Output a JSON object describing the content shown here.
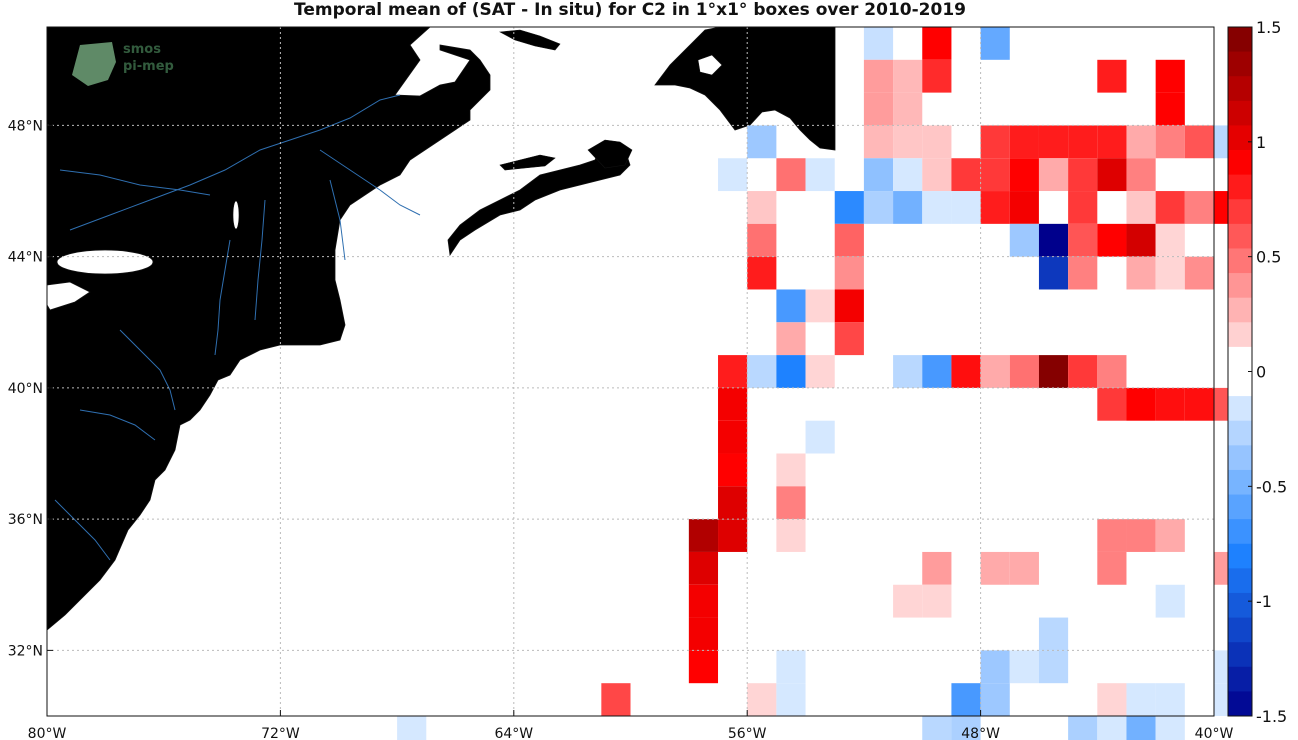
{
  "title": "Temporal mean of (SAT - In situ) for C2 in 1°x1° boxes over 2010-2019",
  "logo": {
    "line1": "smos",
    "line2": "pi-mep"
  },
  "lon_ticks": [
    {
      "value": -80,
      "label": "80°W"
    },
    {
      "value": -72,
      "label": "72°W"
    },
    {
      "value": -64,
      "label": "64°W"
    },
    {
      "value": -56,
      "label": "56°W"
    },
    {
      "value": -48,
      "label": "48°W"
    },
    {
      "value": -40,
      "label": "40°W"
    }
  ],
  "lat_ticks": [
    {
      "value": 32,
      "label": "32°N"
    },
    {
      "value": 36,
      "label": "36°N"
    },
    {
      "value": 40,
      "label": "40°N"
    },
    {
      "value": 44,
      "label": "44°N"
    },
    {
      "value": 48,
      "label": "48°N"
    }
  ],
  "colorbar": {
    "min": -1.5,
    "max": 1.5,
    "steps": 28,
    "ticks": [
      {
        "value": 1.5,
        "label": "1.5"
      },
      {
        "value": 1,
        "label": "1"
      },
      {
        "value": 0.5,
        "label": "0.5"
      },
      {
        "value": 0,
        "label": "0"
      },
      {
        "value": -0.5,
        "label": "-0.5"
      },
      {
        "value": -1,
        "label": "-1"
      },
      {
        "value": -1.5,
        "label": "-1.5"
      }
    ]
  },
  "colors": {
    "land": "#808080",
    "coast": "#111111",
    "river": "#2f6fb0",
    "grid": "#bbbbbb",
    "neg": "#00008c",
    "pos": "#7a0000"
  },
  "chart_data": {
    "type": "heatmap",
    "lon_range": [
      -80,
      -40
    ],
    "lat_range": [
      30,
      51
    ],
    "cell_size_deg": 1,
    "cells": [
      {
        "lon": -51.5,
        "lat": 50.5,
        "value": -0.2
      },
      {
        "lon": -49.5,
        "lat": 50.5,
        "value": 0.9
      },
      {
        "lon": -47.5,
        "lat": 50.5,
        "value": -0.55
      },
      {
        "lon": -51.5,
        "lat": 49.5,
        "value": 0.35
      },
      {
        "lon": -50.5,
        "lat": 49.5,
        "value": 0.25
      },
      {
        "lon": -49.5,
        "lat": 49.5,
        "value": 0.75
      },
      {
        "lon": -43.5,
        "lat": 49.5,
        "value": 0.8
      },
      {
        "lon": -41.5,
        "lat": 49.5,
        "value": 0.9
      },
      {
        "lon": -51.5,
        "lat": 48.5,
        "value": 0.35
      },
      {
        "lon": -50.5,
        "lat": 48.5,
        "value": 0.25
      },
      {
        "lon": -41.5,
        "lat": 48.5,
        "value": 0.9
      },
      {
        "lon": -55.5,
        "lat": 47.5,
        "value": -0.35
      },
      {
        "lon": -51.5,
        "lat": 47.5,
        "value": 0.25
      },
      {
        "lon": -50.5,
        "lat": 47.5,
        "value": 0.2
      },
      {
        "lon": -49.5,
        "lat": 47.5,
        "value": 0.2
      },
      {
        "lon": -47.5,
        "lat": 47.5,
        "value": 0.7
      },
      {
        "lon": -46.5,
        "lat": 47.5,
        "value": 0.8
      },
      {
        "lon": -45.5,
        "lat": 47.5,
        "value": 0.8
      },
      {
        "lon": -44.5,
        "lat": 47.5,
        "value": 0.8
      },
      {
        "lon": -43.5,
        "lat": 47.5,
        "value": 0.8
      },
      {
        "lon": -42.5,
        "lat": 47.5,
        "value": 0.3
      },
      {
        "lon": -41.5,
        "lat": 47.5,
        "value": 0.45
      },
      {
        "lon": -40.5,
        "lat": 47.5,
        "value": 0.6
      },
      {
        "lon": -39.5,
        "lat": 47.5,
        "value": -0.25
      },
      {
        "lon": -56.5,
        "lat": 46.5,
        "value": -0.15
      },
      {
        "lon": -54.5,
        "lat": 46.5,
        "value": 0.5
      },
      {
        "lon": -53.5,
        "lat": 46.5,
        "value": -0.15
      },
      {
        "lon": -51.5,
        "lat": 46.5,
        "value": -0.4
      },
      {
        "lon": -50.5,
        "lat": 46.5,
        "value": -0.15
      },
      {
        "lon": -49.5,
        "lat": 46.5,
        "value": 0.2
      },
      {
        "lon": -48.5,
        "lat": 46.5,
        "value": 0.7
      },
      {
        "lon": -47.5,
        "lat": 46.5,
        "value": 0.7
      },
      {
        "lon": -46.5,
        "lat": 46.5,
        "value": 0.9
      },
      {
        "lon": -45.5,
        "lat": 46.5,
        "value": 0.3
      },
      {
        "lon": -44.5,
        "lat": 46.5,
        "value": 0.7
      },
      {
        "lon": -43.5,
        "lat": 46.5,
        "value": 1.05
      },
      {
        "lon": -42.5,
        "lat": 46.5,
        "value": 0.45
      },
      {
        "lon": -55.5,
        "lat": 45.5,
        "value": 0.2
      },
      {
        "lon": -52.5,
        "lat": 45.5,
        "value": -0.75
      },
      {
        "lon": -51.5,
        "lat": 45.5,
        "value": -0.3
      },
      {
        "lon": -50.5,
        "lat": 45.5,
        "value": -0.5
      },
      {
        "lon": -49.5,
        "lat": 45.5,
        "value": -0.15
      },
      {
        "lon": -48.5,
        "lat": 45.5,
        "value": -0.15
      },
      {
        "lon": -47.5,
        "lat": 45.5,
        "value": 0.8
      },
      {
        "lon": -46.5,
        "lat": 45.5,
        "value": 0.95
      },
      {
        "lon": -45.5,
        "lat": 45.5,
        "value": 0.05
      },
      {
        "lon": -44.5,
        "lat": 45.5,
        "value": 0.7
      },
      {
        "lon": -42.5,
        "lat": 45.5,
        "value": 0.2
      },
      {
        "lon": -41.5,
        "lat": 45.5,
        "value": 0.7
      },
      {
        "lon": -40.5,
        "lat": 45.5,
        "value": 0.45
      },
      {
        "lon": -39.5,
        "lat": 45.5,
        "value": 0.9
      },
      {
        "lon": -55.5,
        "lat": 44.5,
        "value": 0.5
      },
      {
        "lon": -52.5,
        "lat": 44.5,
        "value": 0.55
      },
      {
        "lon": -46.5,
        "lat": 44.5,
        "value": -0.35
      },
      {
        "lon": -45.5,
        "lat": 44.5,
        "value": -1.5
      },
      {
        "lon": -44.5,
        "lat": 44.5,
        "value": 0.6
      },
      {
        "lon": -43.5,
        "lat": 44.5,
        "value": 0.9
      },
      {
        "lon": -42.5,
        "lat": 44.5,
        "value": 1.1
      },
      {
        "lon": -41.5,
        "lat": 44.5,
        "value": 0.15
      },
      {
        "lon": -55.5,
        "lat": 43.5,
        "value": 0.8
      },
      {
        "lon": -52.5,
        "lat": 43.5,
        "value": 0.4
      },
      {
        "lon": -45.5,
        "lat": 43.5,
        "value": -1.2
      },
      {
        "lon": -44.5,
        "lat": 43.5,
        "value": 0.45
      },
      {
        "lon": -42.5,
        "lat": 43.5,
        "value": 0.3
      },
      {
        "lon": -41.5,
        "lat": 43.5,
        "value": 0.15
      },
      {
        "lon": -40.5,
        "lat": 43.5,
        "value": 0.4
      },
      {
        "lon": -54.5,
        "lat": 42.5,
        "value": -0.65
      },
      {
        "lon": -53.5,
        "lat": 42.5,
        "value": 0.15
      },
      {
        "lon": -52.5,
        "lat": 42.5,
        "value": 0.95
      },
      {
        "lon": -54.5,
        "lat": 41.5,
        "value": 0.3
      },
      {
        "lon": -52.5,
        "lat": 41.5,
        "value": 0.65
      },
      {
        "lon": -56.5,
        "lat": 40.5,
        "value": 0.8
      },
      {
        "lon": -55.5,
        "lat": 40.5,
        "value": -0.25
      },
      {
        "lon": -54.5,
        "lat": 40.5,
        "value": -0.8
      },
      {
        "lon": -53.5,
        "lat": 40.5,
        "value": 0.15
      },
      {
        "lon": -50.5,
        "lat": 40.5,
        "value": -0.25
      },
      {
        "lon": -49.5,
        "lat": 40.5,
        "value": -0.65
      },
      {
        "lon": -48.5,
        "lat": 40.5,
        "value": 0.85
      },
      {
        "lon": -47.5,
        "lat": 40.5,
        "value": 0.3
      },
      {
        "lon": -46.5,
        "lat": 40.5,
        "value": 0.5
      },
      {
        "lon": -45.5,
        "lat": 40.5,
        "value": 1.45
      },
      {
        "lon": -44.5,
        "lat": 40.5,
        "value": 0.7
      },
      {
        "lon": -43.5,
        "lat": 40.5,
        "value": 0.45
      },
      {
        "lon": -56.5,
        "lat": 39.5,
        "value": 0.95
      },
      {
        "lon": -43.5,
        "lat": 39.5,
        "value": 0.7
      },
      {
        "lon": -42.5,
        "lat": 39.5,
        "value": 0.9
      },
      {
        "lon": -41.5,
        "lat": 39.5,
        "value": 0.85
      },
      {
        "lon": -40.5,
        "lat": 39.5,
        "value": 0.85
      },
      {
        "lon": -39.5,
        "lat": 39.5,
        "value": 0.6
      },
      {
        "lon": -53.5,
        "lat": 38.5,
        "value": -0.15
      },
      {
        "lon": -56.5,
        "lat": 38.5,
        "value": 0.95
      },
      {
        "lon": -56.5,
        "lat": 37.5,
        "value": 0.9
      },
      {
        "lon": -54.5,
        "lat": 37.5,
        "value": 0.15
      },
      {
        "lon": -56.5,
        "lat": 36.5,
        "value": 1.05
      },
      {
        "lon": -54.5,
        "lat": 36.5,
        "value": 0.45
      },
      {
        "lon": -57.5,
        "lat": 35.5,
        "value": 1.25
      },
      {
        "lon": -56.5,
        "lat": 35.5,
        "value": 1.05
      },
      {
        "lon": -54.5,
        "lat": 35.5,
        "value": 0.15
      },
      {
        "lon": -43.5,
        "lat": 35.5,
        "value": 0.45
      },
      {
        "lon": -42.5,
        "lat": 35.5,
        "value": 0.45
      },
      {
        "lon": -41.5,
        "lat": 35.5,
        "value": 0.3
      },
      {
        "lon": -57.5,
        "lat": 34.5,
        "value": 1.05
      },
      {
        "lon": -49.5,
        "lat": 34.5,
        "value": 0.35
      },
      {
        "lon": -47.5,
        "lat": 34.5,
        "value": 0.3
      },
      {
        "lon": -46.5,
        "lat": 34.5,
        "value": 0.3
      },
      {
        "lon": -43.5,
        "lat": 34.5,
        "value": 0.45
      },
      {
        "lon": -39.5,
        "lat": 34.5,
        "value": 0.35
      },
      {
        "lon": -57.5,
        "lat": 33.5,
        "value": 0.95
      },
      {
        "lon": -50.5,
        "lat": 33.5,
        "value": 0.15
      },
      {
        "lon": -49.5,
        "lat": 33.5,
        "value": 0.15
      },
      {
        "lon": -41.5,
        "lat": 33.5,
        "value": -0.15
      },
      {
        "lon": -57.5,
        "lat": 32.5,
        "value": 0.95
      },
      {
        "lon": -45.5,
        "lat": 32.5,
        "value": -0.25
      },
      {
        "lon": -57.5,
        "lat": 31.5,
        "value": 0.9
      },
      {
        "lon": -54.5,
        "lat": 31.5,
        "value": -0.15
      },
      {
        "lon": -47.5,
        "lat": 31.5,
        "value": -0.35
      },
      {
        "lon": -46.5,
        "lat": 31.5,
        "value": -0.15
      },
      {
        "lon": -45.5,
        "lat": 31.5,
        "value": -0.25
      },
      {
        "lon": -39.5,
        "lat": 31.5,
        "value": -0.15
      },
      {
        "lon": -60.5,
        "lat": 30.5,
        "value": 0.65
      },
      {
        "lon": -55.5,
        "lat": 30.5,
        "value": 0.15
      },
      {
        "lon": -54.5,
        "lat": 30.5,
        "value": -0.15
      },
      {
        "lon": -48.5,
        "lat": 30.5,
        "value": -0.65
      },
      {
        "lon": -47.5,
        "lat": 30.5,
        "value": -0.35
      },
      {
        "lon": -43.5,
        "lat": 30.5,
        "value": 0.15
      },
      {
        "lon": -42.5,
        "lat": 30.5,
        "value": -0.15
      },
      {
        "lon": -41.5,
        "lat": 30.5,
        "value": -0.15
      },
      {
        "lon": -39.5,
        "lat": 30.5,
        "value": -0.15
      },
      {
        "lon": -67.5,
        "lat": 29.5,
        "value": -0.15
      },
      {
        "lon": -49.5,
        "lat": 29.5,
        "value": -0.25
      },
      {
        "lon": -48.5,
        "lat": 29.5,
        "value": -0.3
      },
      {
        "lon": -44.5,
        "lat": 29.5,
        "value": -0.3
      },
      {
        "lon": -43.5,
        "lat": 29.5,
        "value": -0.15
      },
      {
        "lon": -42.5,
        "lat": 29.5,
        "value": -0.5
      },
      {
        "lon": -41.5,
        "lat": 29.5,
        "value": -0.15
      }
    ]
  }
}
